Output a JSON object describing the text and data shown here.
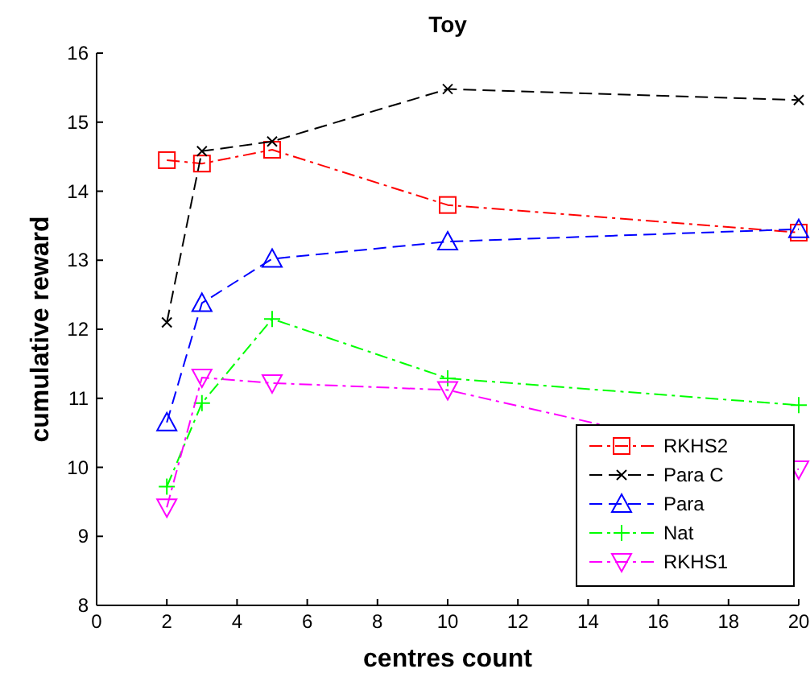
{
  "chart_data": {
    "type": "line",
    "title": "Toy",
    "xlabel": "centres count",
    "ylabel": "cumulative reward",
    "x": [
      2,
      3,
      5,
      10,
      20
    ],
    "xlim": [
      0,
      20
    ],
    "xticks": [
      0,
      2,
      4,
      6,
      8,
      10,
      12,
      14,
      16,
      18,
      20
    ],
    "ylim": [
      8,
      16
    ],
    "yticks": [
      8,
      9,
      10,
      11,
      12,
      13,
      14,
      15,
      16
    ],
    "grid": false,
    "legend": "bottom right",
    "series": [
      {
        "name": "RKHS2",
        "color": "#ff0000",
        "values": [
          14.45,
          14.4,
          14.6,
          13.8,
          13.4
        ],
        "marker": "square",
        "line_style": "dashdot"
      },
      {
        "name": "Para C",
        "color": "#000000",
        "values": [
          12.1,
          14.58,
          14.72,
          15.48,
          15.32
        ],
        "marker": "x",
        "line_style": "dashed"
      },
      {
        "name": "Para",
        "color": "#0000ff",
        "values": [
          10.65,
          12.38,
          13.02,
          13.27,
          13.45
        ],
        "marker": "triangle",
        "line_style": "dashed"
      },
      {
        "name": "Nat",
        "color": "#00ff00",
        "values": [
          9.72,
          10.93,
          12.15,
          11.29,
          10.9
        ],
        "marker": "plus",
        "line_style": "dashdot"
      },
      {
        "name": "RKHS1",
        "color": "#ff00ff",
        "values": [
          9.42,
          11.3,
          11.22,
          11.12,
          9.97
        ],
        "marker": "triangle-down",
        "line_style": "dashdot"
      }
    ]
  }
}
